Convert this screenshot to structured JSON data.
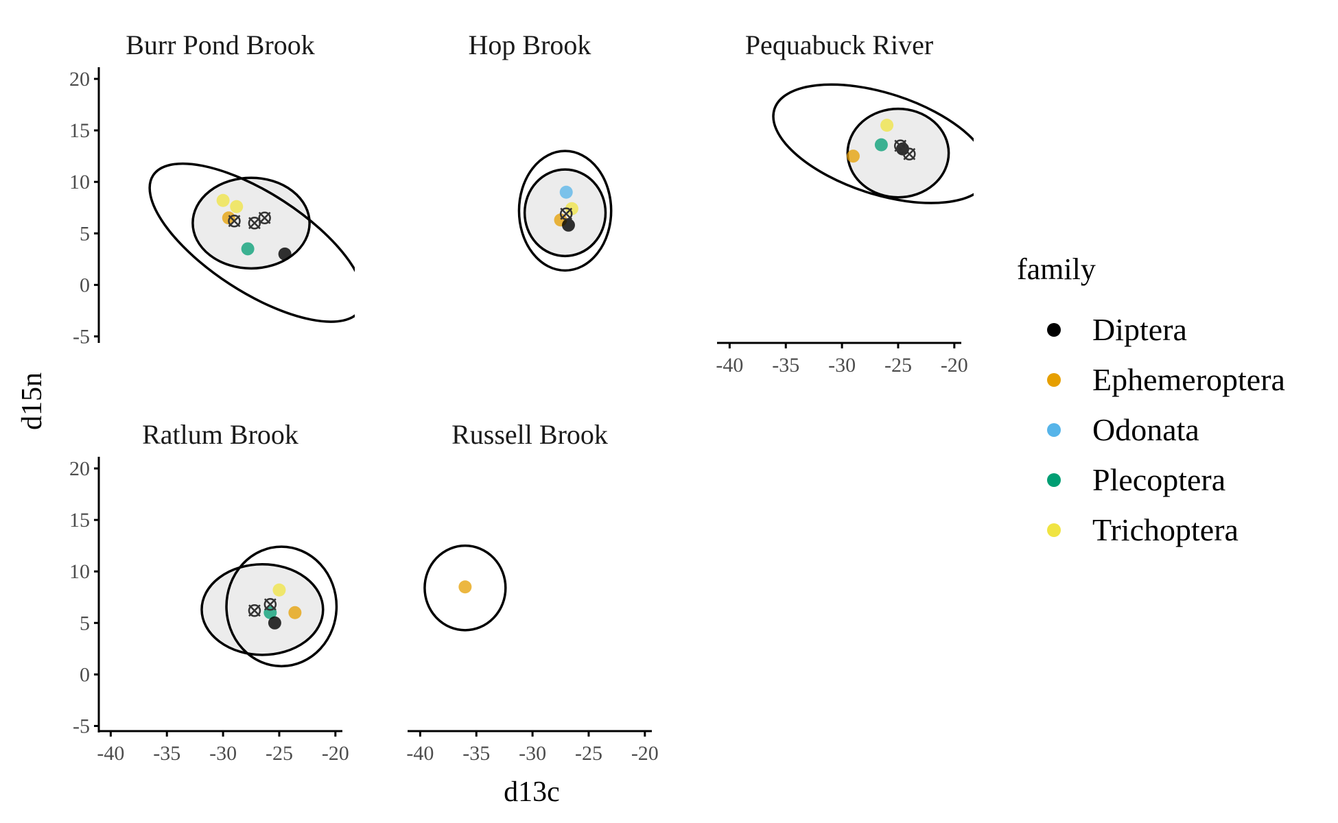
{
  "chart_data": {
    "type": "scatter",
    "xlabel": "d13c",
    "ylabel": "d15n",
    "xlim": [
      -41,
      -19.5
    ],
    "ylim": [
      -5.5,
      21
    ],
    "x_ticks": [
      -40,
      -35,
      -30,
      -25,
      -20
    ],
    "y_ticks": [
      -5,
      0,
      5,
      10,
      15,
      20
    ],
    "legend": {
      "title": "family",
      "placement": "right",
      "entries": [
        {
          "name": "Diptera",
          "color": "#000000"
        },
        {
          "name": "Ephemeroptera",
          "color": "#E69F00"
        },
        {
          "name": "Odonata",
          "color": "#56B4E9"
        },
        {
          "name": "Plecoptera",
          "color": "#009E73"
        },
        {
          "name": "Trichoptera",
          "color": "#F0E442"
        }
      ]
    },
    "panels": [
      {
        "name": "Burr Pond Brook",
        "points": [
          {
            "family": "Trichoptera",
            "x": -30.0,
            "y": 8.2
          },
          {
            "family": "Trichoptera",
            "x": -28.8,
            "y": 7.6
          },
          {
            "family": "Ephemeroptera",
            "x": -29.5,
            "y": 6.5
          },
          {
            "family": "Plecoptera",
            "x": -27.8,
            "y": 3.5
          },
          {
            "family": "Diptera",
            "x": -24.5,
            "y": 3.0
          }
        ],
        "centroids": [
          {
            "x": -29.0,
            "y": 6.2
          },
          {
            "x": -27.2,
            "y": 6.0
          },
          {
            "x": -26.3,
            "y": 6.5
          }
        ],
        "ellipses": [
          {
            "cx": -27.0,
            "cy": 4.1,
            "rx": 11.0,
            "ry": 4.8,
            "angle": 33,
            "filled": false
          },
          {
            "cx": -27.5,
            "cy": 6.0,
            "rx": 5.2,
            "ry": 4.4,
            "angle": 0,
            "filled": true
          }
        ]
      },
      {
        "name": "Hop Brook",
        "points": [
          {
            "family": "Odonata",
            "x": -27.0,
            "y": 9.0
          },
          {
            "family": "Trichoptera",
            "x": -26.5,
            "y": 7.4
          },
          {
            "family": "Ephemeroptera",
            "x": -27.5,
            "y": 6.3
          },
          {
            "family": "Diptera",
            "x": -26.8,
            "y": 5.8
          }
        ],
        "centroids": [
          {
            "x": -27.0,
            "y": 6.9
          }
        ],
        "ellipses": [
          {
            "cx": -27.1,
            "cy": 7.2,
            "rx": 4.1,
            "ry": 5.8,
            "angle": 0,
            "filled": false
          },
          {
            "cx": -27.1,
            "cy": 7.0,
            "rx": 3.6,
            "ry": 4.2,
            "angle": 0,
            "filled": true
          }
        ]
      },
      {
        "name": "Pequabuck River",
        "points": [
          {
            "family": "Trichoptera",
            "x": -26.0,
            "y": 15.5
          },
          {
            "family": "Plecoptera",
            "x": -26.5,
            "y": 13.6
          },
          {
            "family": "Ephemeroptera",
            "x": -29.0,
            "y": 12.5
          },
          {
            "family": "Diptera",
            "x": -24.6,
            "y": 13.2
          }
        ],
        "centroids": [
          {
            "x": -24.8,
            "y": 13.5
          },
          {
            "x": -24.0,
            "y": 12.7
          }
        ],
        "ellipses": [
          {
            "cx": -26.5,
            "cy": 13.7,
            "rx": 10.0,
            "ry": 4.9,
            "angle": 18,
            "filled": false
          },
          {
            "cx": -25.0,
            "cy": 12.8,
            "rx": 4.5,
            "ry": 4.3,
            "angle": 0,
            "filled": true
          }
        ]
      },
      {
        "name": "Ratlum Brook",
        "points": [
          {
            "family": "Trichoptera",
            "x": -25.0,
            "y": 8.2
          },
          {
            "family": "Plecoptera",
            "x": -25.8,
            "y": 6.0
          },
          {
            "family": "Ephemeroptera",
            "x": -23.6,
            "y": 6.0
          },
          {
            "family": "Diptera",
            "x": -25.4,
            "y": 5.0
          }
        ],
        "centroids": [
          {
            "x": -27.2,
            "y": 6.2
          },
          {
            "x": -25.8,
            "y": 6.8
          }
        ],
        "ellipses": [
          {
            "cx": -24.8,
            "cy": 6.6,
            "rx": 4.9,
            "ry": 5.8,
            "angle": 0,
            "filled": false
          },
          {
            "cx": -26.5,
            "cy": 6.3,
            "rx": 5.4,
            "ry": 4.4,
            "angle": 0,
            "filled": true
          }
        ]
      },
      {
        "name": "Russell Brook",
        "points": [
          {
            "family": "Ephemeroptera",
            "x": -36.0,
            "y": 8.5
          }
        ],
        "centroids": [],
        "ellipses": [
          {
            "cx": -36.0,
            "cy": 8.4,
            "rx": 3.6,
            "ry": 4.1,
            "angle": 0,
            "filled": false
          }
        ]
      }
    ]
  }
}
